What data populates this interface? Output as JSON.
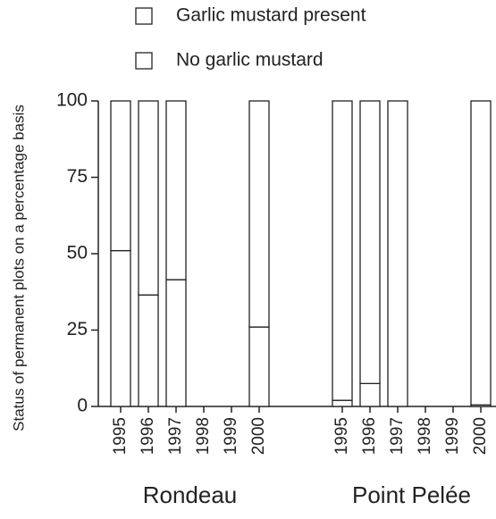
{
  "chart_data": {
    "type": "stacked-bar",
    "y_label": "Status of permanent plots on a percentage basis",
    "categories": [
      "1995",
      "1996",
      "1997",
      "1998",
      "1999",
      "2000",
      "1995",
      "1996",
      "1997",
      "1998",
      "1999",
      "2000"
    ],
    "groups": [
      "Rondeau",
      "Point Pelée"
    ],
    "series": [
      {
        "name": "Garlic mustard present",
        "color": "#ffffff",
        "values": [
          51,
          36.5,
          41.5,
          null,
          null,
          26,
          2,
          7.5,
          0,
          null,
          null,
          0.5
        ]
      },
      {
        "name": "No garlic mustard",
        "color": "#ffffff",
        "values": [
          49,
          63.5,
          58.5,
          null,
          null,
          74,
          98,
          92.5,
          100,
          null,
          null,
          99.5
        ]
      }
    ],
    "ylim": [
      0,
      100
    ],
    "yticks": [
      0,
      25,
      50,
      75,
      100
    ],
    "grid": false
  }
}
